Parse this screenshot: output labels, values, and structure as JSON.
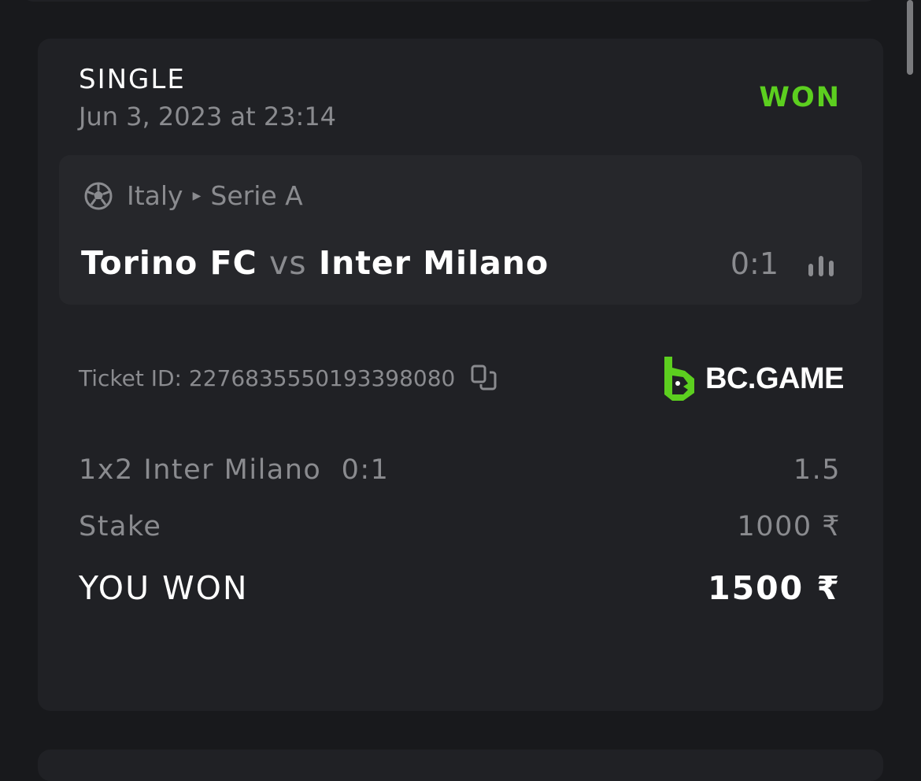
{
  "bet": {
    "type": "SINGLE",
    "date": "Jun 3, 2023 at 23:14",
    "status": "WON",
    "status_color": "#5ccf1f",
    "event": {
      "sport_icon": "soccer-ball-icon",
      "country": "Italy",
      "league": "Serie A",
      "home_team": "Torino FC",
      "vs": "vs",
      "away_team": "Inter Milano",
      "score": "0:1",
      "stats_icon": "bar-chart-icon"
    },
    "ticket_label": "Ticket ID: 2276835550193398080",
    "brand": "BC.GAME",
    "selection": {
      "label": "1x2 Inter Milano  0:1",
      "odds": "1.5"
    },
    "stake": {
      "label": "Stake",
      "value": "1000 ₹"
    },
    "payout": {
      "label": "YOU WON",
      "value": "1500 ₹"
    }
  }
}
